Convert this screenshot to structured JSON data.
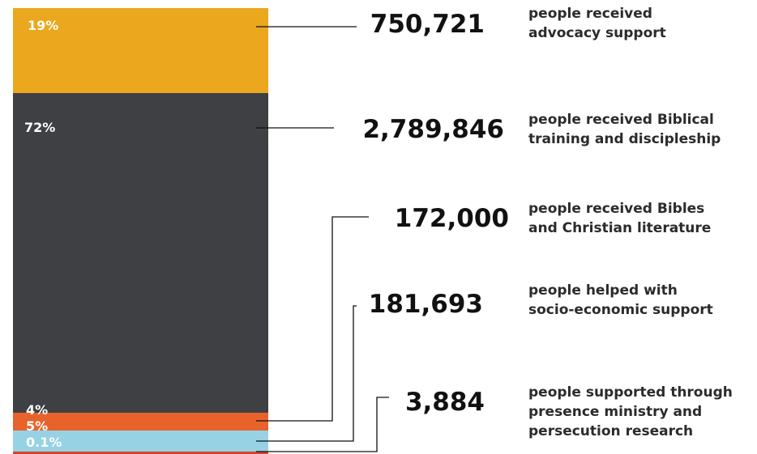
{
  "chart_data": {
    "type": "bar",
    "stacked": true,
    "categories": [
      "people received advocacy support",
      "people received Biblical training and discipleship",
      "people received Bibles and Christian literature",
      "people helped with socio-economic support",
      "people supported through presence ministry and persecution research"
    ],
    "series": [
      {
        "key": "advocacy",
        "percent_label": "19%",
        "percent": 19,
        "value": 750721,
        "value_label": "750,721",
        "description": [
          "people received",
          "advocacy support"
        ],
        "color": "#EBA71E"
      },
      {
        "key": "training",
        "percent_label": "72%",
        "percent": 72,
        "value": 2789846,
        "value_label": "2,789,846",
        "description": [
          "people received Biblical",
          "training and discipleship"
        ],
        "color": "#3F4044"
      },
      {
        "key": "bibles",
        "percent_label": "4%",
        "percent": 4,
        "value": 172000,
        "value_label": "172,000",
        "description": [
          "people received Bibles",
          "and Christian literature"
        ],
        "color": "#E8632C"
      },
      {
        "key": "socio-economic",
        "percent_label": "5%",
        "percent": 5,
        "value": 181693,
        "value_label": "181,693",
        "description": [
          "people helped with",
          "socio-economic support"
        ],
        "color": "#E8632C"
      },
      {
        "key": "presence",
        "percent_label": "0.1%",
        "percent": 0.1,
        "value": 3884,
        "value_label": "3,884",
        "description": [
          "people supported through",
          "presence ministry and",
          "persecution research"
        ],
        "color": "#96D2E4"
      }
    ]
  }
}
